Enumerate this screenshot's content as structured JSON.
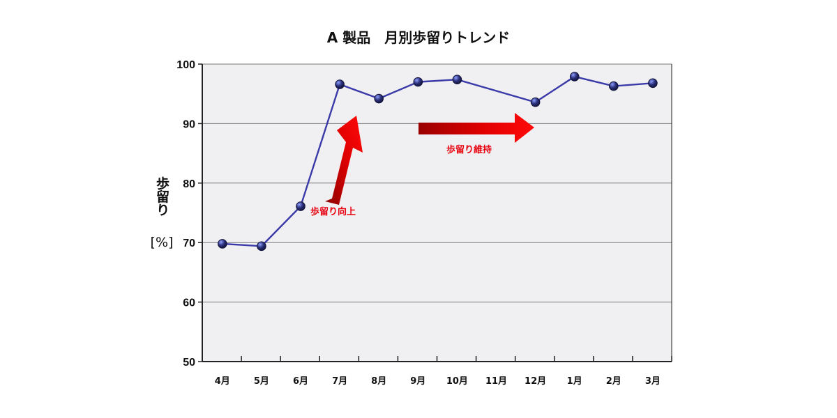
{
  "chart_data": {
    "type": "line",
    "title": "A 製品　月別歩留りトレンド",
    "xlabel": "",
    "ylabel_lines": [
      "歩留り",
      "[%]"
    ],
    "categories": [
      "4月",
      "5月",
      "6月",
      "7月",
      "8月",
      "9月",
      "10月",
      "11月",
      "12月",
      "1月",
      "2月",
      "3月"
    ],
    "series": [
      {
        "values": [
          69.8,
          69.4,
          76.1,
          96.6,
          94.2,
          97.0,
          97.4,
          null,
          93.6,
          97.9,
          96.3,
          96.8
        ]
      }
    ],
    "ylim": [
      50,
      100
    ],
    "yticks": [
      50,
      60,
      70,
      80,
      90,
      100
    ],
    "grid": true,
    "colors": {
      "plot_background": "#f0f0f2",
      "line": "#3a3aa8",
      "marker": "#2b2f7a",
      "grid": "#777777",
      "axis": "#222222",
      "annotation": "#e8000f"
    },
    "annotations": [
      {
        "text": "歩留り向上",
        "arrow": "up-right"
      },
      {
        "text": "歩留り維持",
        "arrow": "right"
      }
    ]
  }
}
